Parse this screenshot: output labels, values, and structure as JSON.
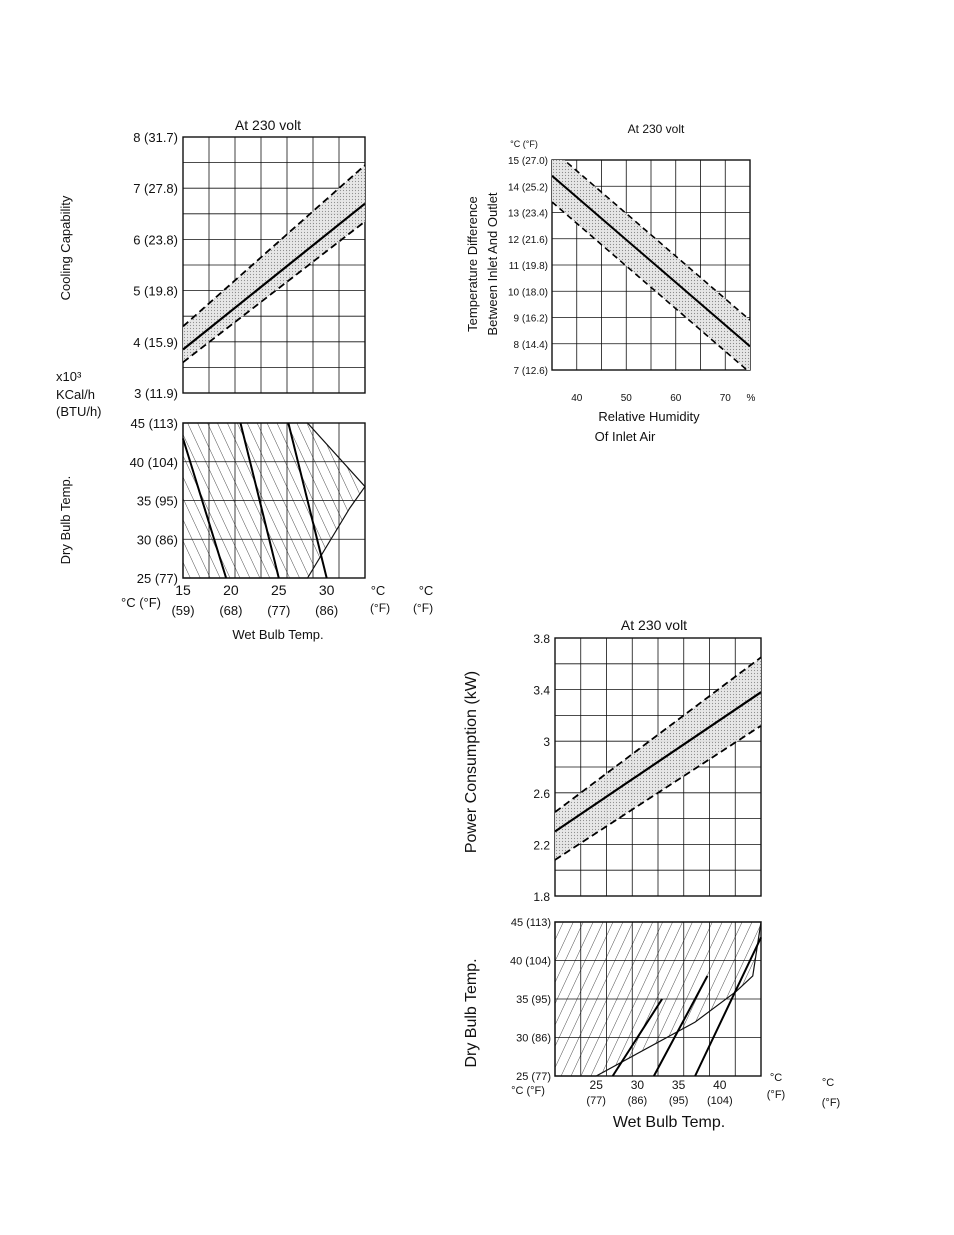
{
  "chart_data": [
    {
      "id": "cooling",
      "type": "line",
      "title": "At 230 volt",
      "ylabel": "Cooling Capability",
      "units": [
        "x10³",
        "KCal/h",
        "(BTU/h)"
      ],
      "ylim": [
        3,
        8
      ],
      "yticks": [
        "3 (11.9)",
        "4 (15.9)",
        "5 (19.8)",
        "6 (23.8)",
        "7 (27.8)",
        "8 (31.7)"
      ],
      "x": [
        15,
        34
      ],
      "series": [
        {
          "style": "solid",
          "y": [
            3.85,
            6.7
          ]
        },
        {
          "style": "dashed",
          "y": [
            4.3,
            7.45
          ]
        },
        {
          "style": "dashed",
          "y": [
            3.6,
            6.35
          ]
        }
      ]
    },
    {
      "id": "cooling-drybulb",
      "type": "area",
      "ylabel": "Dry Bulb Temp.",
      "ylim": [
        25,
        45
      ],
      "yticks": [
        "25 (77)",
        "30 (86)",
        "35 (95)",
        "40 (104)",
        "45 (113)"
      ],
      "xlabel": "Wet Bulb Temp.",
      "xlim": [
        15,
        34
      ],
      "xticks_c": [
        "15",
        "20",
        "25",
        "30"
      ],
      "xticks_f": [
        "(59)",
        "(68)",
        "(77)",
        "(86)"
      ],
      "x_unit_c": "°C",
      "x_unit_f": "(°F)",
      "unit_labels_c": [
        "°C",
        "°C"
      ],
      "unit_labels_f": [
        "(°F)",
        "(°F)"
      ],
      "region": [
        [
          15,
          25
        ],
        [
          15,
          45
        ],
        [
          28,
          45
        ],
        [
          34,
          36.8
        ],
        [
          32.4,
          34
        ],
        [
          28,
          25
        ]
      ]
    },
    {
      "id": "temp-diff",
      "type": "line",
      "title": "At 230 volt",
      "ylabel_line1": "Temperature Difference",
      "ylabel_line2": "Between Inlet And Outlet",
      "y_unit": "°C (°F)",
      "ylim": [
        7,
        15
      ],
      "yticks": [
        "7 (12.6)",
        "8 (14.4)",
        "9 (16.2)",
        "10 (18.0)",
        "11 (19.8)",
        "12 (21.6)",
        "13 (23.4)",
        "14 (25.2)",
        "15 (27.0)"
      ],
      "xlim": [
        35,
        75
      ],
      "xticks": [
        "40",
        "50",
        "60",
        "70"
      ],
      "x_unit": "%",
      "xlabel_line1": "Relative Humidity",
      "xlabel_line2": "Of Inlet Air",
      "series": [
        {
          "style": "solid",
          "x": [
            35,
            75
          ],
          "y": [
            14.4,
            7.9
          ]
        },
        {
          "style": "dashed",
          "x": [
            35,
            75
          ],
          "y": [
            15.4,
            8.9
          ]
        },
        {
          "style": "dashed",
          "x": [
            35,
            75
          ],
          "y": [
            13.4,
            6.9
          ]
        }
      ]
    },
    {
      "id": "power",
      "type": "line",
      "title": "At 230 volt",
      "ylabel": "Power Consumption (kW)",
      "ylim": [
        1.8,
        3.8
      ],
      "yticks": [
        "1.8",
        "2.2",
        "2.6",
        "3",
        "3.4",
        "3.8"
      ],
      "x": [
        20,
        45
      ],
      "series": [
        {
          "style": "solid",
          "y": [
            2.3,
            3.38
          ]
        },
        {
          "style": "dashed",
          "y": [
            2.45,
            3.65
          ]
        },
        {
          "style": "dashed",
          "y": [
            2.08,
            3.12
          ]
        }
      ]
    },
    {
      "id": "power-drybulb",
      "type": "area",
      "ylabel": "Dry Bulb Temp.",
      "ylim": [
        25,
        45
      ],
      "yticks": [
        "25 (77)",
        "30 (86)",
        "35 (95)",
        "40 (104)",
        "45 (113)"
      ],
      "xlabel": "Wet Bulb Temp.",
      "xlim": [
        20,
        45
      ],
      "xticks_c": [
        "25",
        "30",
        "35",
        "40"
      ],
      "xticks_f": [
        "(77)",
        "(86)",
        "(95)",
        "(104)"
      ],
      "x_unit_c": "°C",
      "x_unit_f": "°C (°F)",
      "unit_labels_c": [
        "°C",
        "°C"
      ],
      "unit_labels_f": [
        "(°F)",
        "(°F)"
      ],
      "region": [
        [
          20,
          25
        ],
        [
          20,
          45
        ],
        [
          45,
          45
        ],
        [
          44,
          38
        ],
        [
          42,
          36
        ],
        [
          37,
          32
        ],
        [
          25,
          25
        ]
      ]
    }
  ]
}
